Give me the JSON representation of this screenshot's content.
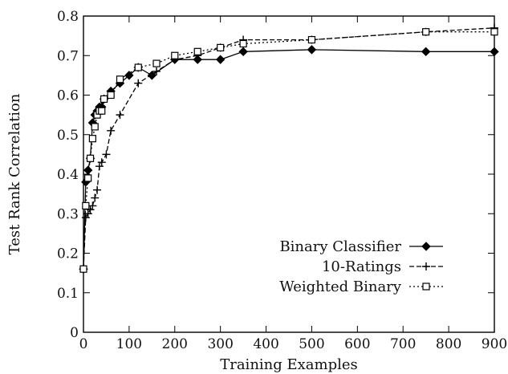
{
  "chart_data": {
    "type": "line",
    "title": "",
    "xlabel": "Training Examples",
    "ylabel": "Test Rank Correlation",
    "xlim": [
      0,
      900
    ],
    "ylim": [
      0,
      0.8
    ],
    "xticks": [
      0,
      100,
      200,
      300,
      400,
      500,
      600,
      700,
      800,
      900
    ],
    "yticks": [
      0,
      0.1,
      0.2,
      0.3,
      0.4,
      0.5,
      0.6,
      0.7,
      0.8
    ],
    "xtick_labels": [
      "0",
      "100",
      "200",
      "300",
      "400",
      "500",
      "600",
      "700",
      "800",
      "900"
    ],
    "ytick_labels": [
      "0",
      "0.1",
      "0.2",
      "0.3",
      "0.4",
      "0.5",
      "0.6",
      "0.7",
      "0.8"
    ],
    "grid": false,
    "legend_position": "lower-right",
    "series": [
      {
        "name": "Binary Classifier",
        "marker": "diamond",
        "line_style": "solid",
        "color": "#000000",
        "points": [
          [
            0,
            0.16
          ],
          [
            5,
            0.38
          ],
          [
            10,
            0.41
          ],
          [
            15,
            0.44
          ],
          [
            20,
            0.53
          ],
          [
            25,
            0.55
          ],
          [
            30,
            0.56
          ],
          [
            35,
            0.57
          ],
          [
            40,
            0.57
          ],
          [
            45,
            0.59
          ],
          [
            60,
            0.61
          ],
          [
            80,
            0.63
          ],
          [
            100,
            0.65
          ],
          [
            120,
            0.67
          ],
          [
            150,
            0.65
          ],
          [
            200,
            0.69
          ],
          [
            250,
            0.69
          ],
          [
            300,
            0.69
          ],
          [
            350,
            0.71
          ],
          [
            500,
            0.715
          ],
          [
            750,
            0.71
          ],
          [
            900,
            0.71
          ]
        ]
      },
      {
        "name": "10-Ratings",
        "marker": "plus",
        "line_style": "dashed",
        "color": "#000000",
        "points": [
          [
            0,
            0.16
          ],
          [
            5,
            0.29
          ],
          [
            10,
            0.3
          ],
          [
            15,
            0.31
          ],
          [
            20,
            0.32
          ],
          [
            25,
            0.34
          ],
          [
            30,
            0.36
          ],
          [
            35,
            0.42
          ],
          [
            40,
            0.43
          ],
          [
            50,
            0.45
          ],
          [
            60,
            0.51
          ],
          [
            80,
            0.55
          ],
          [
            120,
            0.63
          ],
          [
            160,
            0.66
          ],
          [
            200,
            0.69
          ],
          [
            250,
            0.7
          ],
          [
            300,
            0.72
          ],
          [
            350,
            0.74
          ],
          [
            500,
            0.74
          ],
          [
            750,
            0.76
          ],
          [
            900,
            0.77
          ]
        ]
      },
      {
        "name": "Weighted Binary",
        "marker": "square",
        "line_style": "dotted",
        "color": "#000000",
        "points": [
          [
            0,
            0.16
          ],
          [
            5,
            0.32
          ],
          [
            10,
            0.39
          ],
          [
            15,
            0.44
          ],
          [
            20,
            0.49
          ],
          [
            25,
            0.52
          ],
          [
            30,
            0.55
          ],
          [
            35,
            0.56
          ],
          [
            40,
            0.56
          ],
          [
            45,
            0.59
          ],
          [
            60,
            0.6
          ],
          [
            80,
            0.64
          ],
          [
            120,
            0.67
          ],
          [
            160,
            0.68
          ],
          [
            200,
            0.7
          ],
          [
            250,
            0.71
          ],
          [
            300,
            0.72
          ],
          [
            350,
            0.73
          ],
          [
            500,
            0.74
          ],
          [
            750,
            0.76
          ],
          [
            900,
            0.76
          ]
        ]
      }
    ]
  }
}
